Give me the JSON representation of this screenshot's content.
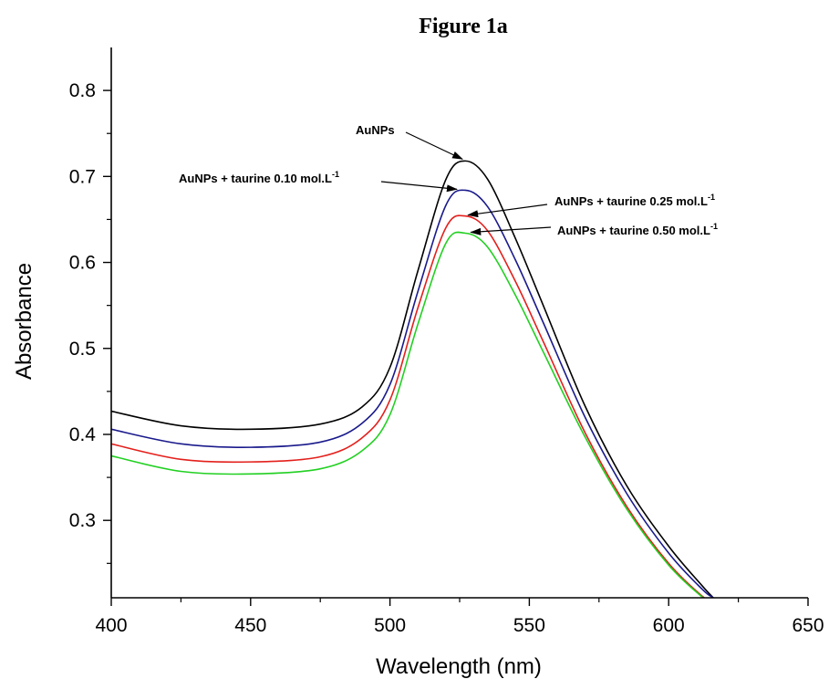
{
  "chart_data": {
    "type": "line",
    "title": "Figure 1a",
    "xlabel": "Wavelength (nm)",
    "ylabel": "Absorbance",
    "xlim": [
      400,
      650
    ],
    "ylim": [
      0.21,
      0.85
    ],
    "xticks": [
      400,
      450,
      500,
      550,
      600,
      650
    ],
    "yticks": [
      0.3,
      0.4,
      0.5,
      0.6,
      0.7,
      0.8
    ],
    "xtick_labels": [
      "400",
      "450",
      "500",
      "550",
      "600",
      "650"
    ],
    "ytick_labels": [
      "0.3",
      "0.4",
      "0.5",
      "0.6",
      "0.7",
      "0.8"
    ],
    "grid": false,
    "legend": "annotations with arrows",
    "x": [
      400,
      425,
      450,
      475,
      490,
      500,
      510,
      520,
      527,
      535,
      545,
      555,
      570,
      585,
      600,
      612,
      616
    ],
    "series": [
      {
        "name": "AuNPs",
        "color": "#000000",
        "values": [
          0.427,
          0.41,
          0.406,
          0.412,
          0.432,
          0.478,
          0.59,
          0.696,
          0.718,
          0.697,
          0.628,
          0.55,
          0.433,
          0.34,
          0.27,
          0.224,
          0.21
        ]
      },
      {
        "name": "AuNPs + taurine 0.10 mol.L-1",
        "color": "#1a1a8c",
        "values": [
          0.406,
          0.389,
          0.385,
          0.391,
          0.413,
          0.458,
          0.566,
          0.666,
          0.684,
          0.665,
          0.603,
          0.53,
          0.42,
          0.331,
          0.262,
          0.22,
          0.21
        ]
      },
      {
        "name": "AuNPs + taurine 0.25 mol.L-1",
        "color": "#e3201c",
        "values": [
          0.389,
          0.371,
          0.368,
          0.374,
          0.396,
          0.44,
          0.547,
          0.64,
          0.654,
          0.637,
          0.578,
          0.508,
          0.402,
          0.316,
          0.25,
          0.212,
          0.205
        ]
      },
      {
        "name": "AuNPs + taurine 0.50 mol.L-1",
        "color": "#22d022",
        "values": [
          0.375,
          0.357,
          0.354,
          0.36,
          0.381,
          0.423,
          0.528,
          0.622,
          0.634,
          0.618,
          0.562,
          0.496,
          0.397,
          0.313,
          0.248,
          0.211,
          0.204
        ]
      }
    ],
    "annotations": [
      {
        "text": "AuNPs",
        "sup": "",
        "points_to": {
          "x": 526,
          "y": 0.718
        }
      },
      {
        "text": "AuNPs + taurine 0.10 mol.L",
        "sup": "-1",
        "points_to": {
          "x": 524,
          "y": 0.684
        }
      },
      {
        "text": "AuNPs + taurine 0.25 mol.L",
        "sup": "-1",
        "points_to": {
          "x": 528,
          "y": 0.654
        }
      },
      {
        "text": "AuNPs + taurine 0.50 mol.L",
        "sup": "-1",
        "points_to": {
          "x": 529,
          "y": 0.634
        }
      }
    ]
  }
}
